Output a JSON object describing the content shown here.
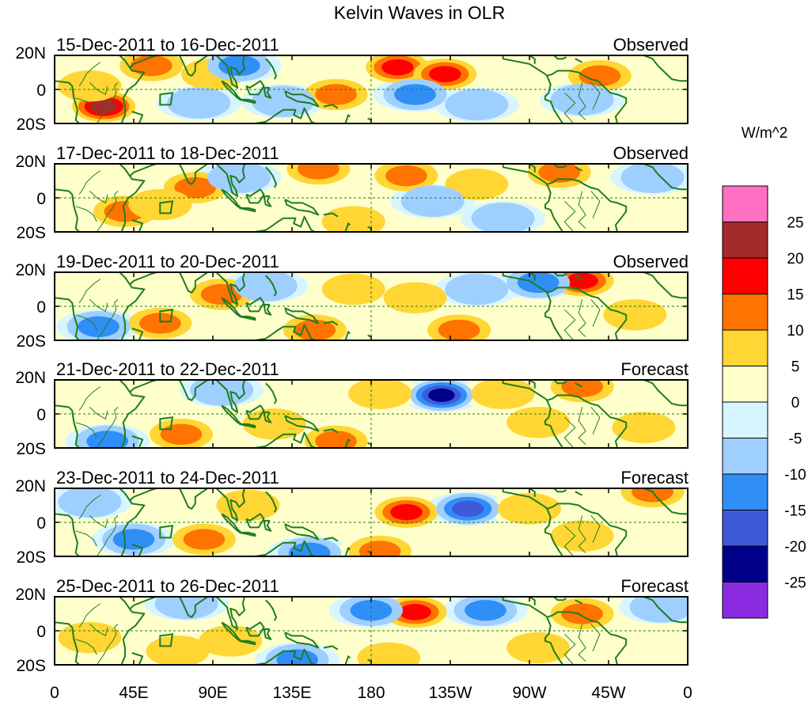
{
  "chart_data": {
    "type": "heatmap",
    "title": "Kelvin Waves in OLR",
    "units_label": "W/m^2",
    "y_ticks": [
      "20N",
      "0",
      "20S"
    ],
    "x_ticks": [
      "0",
      "45E",
      "90E",
      "135E",
      "180",
      "135W",
      "90W",
      "45W",
      "0"
    ],
    "x_range_deg": [
      0,
      360
    ],
    "y_range_deg": [
      -20,
      20
    ],
    "colorbar": {
      "labels": [
        "25",
        "20",
        "15",
        "10",
        "5",
        "0",
        "-5",
        "-10",
        "-15",
        "-20",
        "-25"
      ],
      "levels": [
        {
          "min": 25,
          "max": 30,
          "color": "#ff6fc4"
        },
        {
          "min": 20,
          "max": 25,
          "color": "#a52a2a"
        },
        {
          "min": 15,
          "max": 20,
          "color": "#ff0000"
        },
        {
          "min": 10,
          "max": 15,
          "color": "#ff7300"
        },
        {
          "min": 5,
          "max": 10,
          "color": "#ffd633"
        },
        {
          "min": 0,
          "max": 5,
          "color": "#ffffcc"
        },
        {
          "min": -5,
          "max": 0,
          "color": "#d6f5ff"
        },
        {
          "min": -10,
          "max": -5,
          "color": "#9fcfff"
        },
        {
          "min": -15,
          "max": -10,
          "color": "#2f8ff7"
        },
        {
          "min": -20,
          "max": -15,
          "color": "#3f5ad8"
        },
        {
          "min": -25,
          "max": -20,
          "color": "#00008b"
        },
        {
          "min": -30,
          "max": -25,
          "color": "#8a2be2"
        }
      ]
    },
    "panels": [
      {
        "period": "15-Dec-2011 to 16-Dec-2011",
        "status": "Observed",
        "anomalies": [
          {
            "lon": 28,
            "lat": -10,
            "value": 20
          },
          {
            "lon": 20,
            "lat": 2,
            "value": 7
          },
          {
            "lon": 55,
            "lat": 14,
            "value": 12
          },
          {
            "lon": 90,
            "lat": 9,
            "value": 7
          },
          {
            "lon": 82,
            "lat": -8,
            "value": -7
          },
          {
            "lon": 105,
            "lat": 14,
            "value": -12
          },
          {
            "lon": 160,
            "lat": -3,
            "value": 12
          },
          {
            "lon": 195,
            "lat": 13,
            "value": 17
          },
          {
            "lon": 222,
            "lat": 9,
            "value": 16
          },
          {
            "lon": 205,
            "lat": -3,
            "value": -13
          },
          {
            "lon": 240,
            "lat": -9,
            "value": -7
          },
          {
            "lon": 310,
            "lat": 8,
            "value": 12
          },
          {
            "lon": 300,
            "lat": -6,
            "value": -7
          },
          {
            "lon": 130,
            "lat": -7,
            "value": -6
          }
        ]
      },
      {
        "period": "17-Dec-2011 to 18-Dec-2011",
        "status": "Observed",
        "anomalies": [
          {
            "lon": 80,
            "lat": 6,
            "value": 12
          },
          {
            "lon": 40,
            "lat": -8,
            "value": 10
          },
          {
            "lon": 60,
            "lat": -4,
            "value": 6
          },
          {
            "lon": 150,
            "lat": 17,
            "value": 12
          },
          {
            "lon": 200,
            "lat": 13,
            "value": 13
          },
          {
            "lon": 240,
            "lat": 8,
            "value": 8
          },
          {
            "lon": 287,
            "lat": 15,
            "value": 14
          },
          {
            "lon": 105,
            "lat": 12,
            "value": -7
          },
          {
            "lon": 215,
            "lat": -2,
            "value": -9
          },
          {
            "lon": 340,
            "lat": 12,
            "value": -8
          },
          {
            "lon": 170,
            "lat": -14,
            "value": 6
          },
          {
            "lon": 255,
            "lat": -12,
            "value": -6
          }
        ]
      },
      {
        "period": "19-Dec-2011 to 20-Dec-2011",
        "status": "Observed",
        "anomalies": [
          {
            "lon": 95,
            "lat": 7,
            "value": 12
          },
          {
            "lon": 60,
            "lat": -10,
            "value": 12
          },
          {
            "lon": 300,
            "lat": 15,
            "value": 15
          },
          {
            "lon": 275,
            "lat": 14,
            "value": -12
          },
          {
            "lon": 148,
            "lat": -14,
            "value": 12
          },
          {
            "lon": 230,
            "lat": -14,
            "value": 12
          },
          {
            "lon": 205,
            "lat": 5,
            "value": 7
          },
          {
            "lon": 170,
            "lat": 10,
            "value": 6
          },
          {
            "lon": 120,
            "lat": 12,
            "value": -8
          },
          {
            "lon": 25,
            "lat": -12,
            "value": -10
          },
          {
            "lon": 240,
            "lat": 10,
            "value": -6
          },
          {
            "lon": 330,
            "lat": -5,
            "value": 6
          }
        ]
      },
      {
        "period": "21-Dec-2011 to 22-Dec-2011",
        "status": "Forecast",
        "anomalies": [
          {
            "lon": 220,
            "lat": 11,
            "value": -22
          },
          {
            "lon": 160,
            "lat": -16,
            "value": 14
          },
          {
            "lon": 72,
            "lat": -12,
            "value": 12
          },
          {
            "lon": 300,
            "lat": 16,
            "value": 14
          },
          {
            "lon": 185,
            "lat": 12,
            "value": 8
          },
          {
            "lon": 255,
            "lat": 12,
            "value": 8
          },
          {
            "lon": 30,
            "lat": -16,
            "value": -10
          },
          {
            "lon": 95,
            "lat": 14,
            "value": -8
          },
          {
            "lon": 275,
            "lat": -5,
            "value": 7
          },
          {
            "lon": 125,
            "lat": -6,
            "value": 6
          },
          {
            "lon": 335,
            "lat": -8,
            "value": 6
          }
        ]
      },
      {
        "period": "23-Dec-2011 to 24-Dec-2011",
        "status": "Forecast",
        "anomalies": [
          {
            "lon": 200,
            "lat": 6,
            "value": 17
          },
          {
            "lon": 235,
            "lat": 8,
            "value": -17
          },
          {
            "lon": 145,
            "lat": -18,
            "value": -14
          },
          {
            "lon": 185,
            "lat": -17,
            "value": 12
          },
          {
            "lon": 85,
            "lat": -10,
            "value": 12
          },
          {
            "lon": 45,
            "lat": -10,
            "value": -12
          },
          {
            "lon": 340,
            "lat": 18,
            "value": 12
          },
          {
            "lon": 270,
            "lat": 8,
            "value": 8
          },
          {
            "lon": 20,
            "lat": 12,
            "value": -8
          },
          {
            "lon": 110,
            "lat": 10,
            "value": 6
          },
          {
            "lon": 300,
            "lat": -8,
            "value": 6
          }
        ]
      },
      {
        "period": "25-Dec-2011 to 26-Dec-2011",
        "status": "Forecast",
        "anomalies": [
          {
            "lon": 205,
            "lat": 11,
            "value": 17
          },
          {
            "lon": 138,
            "lat": -17,
            "value": -14
          },
          {
            "lon": 180,
            "lat": 12,
            "value": -10
          },
          {
            "lon": 245,
            "lat": 12,
            "value": -10
          },
          {
            "lon": 190,
            "lat": -16,
            "value": 8
          },
          {
            "lon": 70,
            "lat": -12,
            "value": 8
          },
          {
            "lon": 20,
            "lat": -4,
            "value": 8
          },
          {
            "lon": 75,
            "lat": 16,
            "value": -7
          },
          {
            "lon": 300,
            "lat": 10,
            "value": 10
          },
          {
            "lon": 275,
            "lat": -10,
            "value": 8
          },
          {
            "lon": 100,
            "lat": -6,
            "value": 6
          },
          {
            "lon": 345,
            "lat": 14,
            "value": -6
          }
        ]
      }
    ]
  }
}
